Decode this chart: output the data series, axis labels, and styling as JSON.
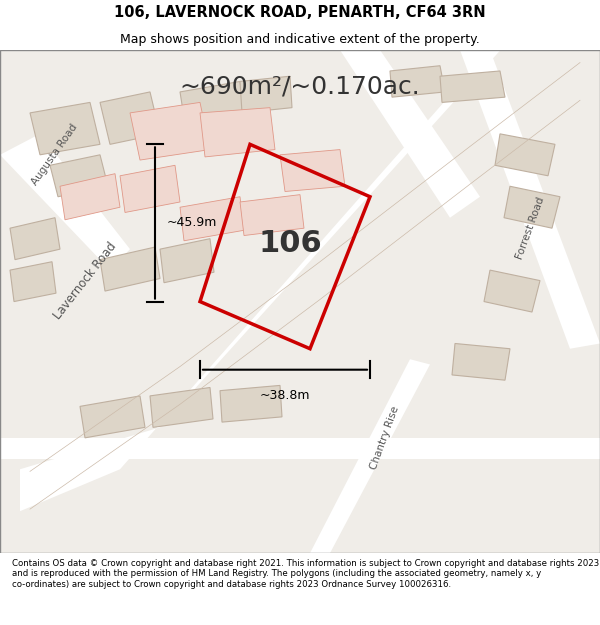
{
  "title": "106, LAVERNOCK ROAD, PENARTH, CF64 3RN",
  "subtitle": "Map shows position and indicative extent of the property.",
  "area_text": "~690m²/~0.170ac.",
  "footer": "Contains OS data © Crown copyright and database right 2021. This information is subject to Crown copyright and database rights 2023 and is reproduced with the permission of HM Land Registry. The polygons (including the associated geometry, namely x, y co-ordinates) are subject to Crown copyright and database rights 2023 Ordnance Survey 100026316.",
  "map_bg": "#f0ede8",
  "road_color": "#ffffff",
  "building_fill": "#e8e0d5",
  "building_stroke": "#c8b8a8",
  "highlight_color": "#e8c8c0",
  "property_outline": "#cc0000",
  "measurement_color": "#000000",
  "dim_width": "~38.8m",
  "dim_height": "~45.9m",
  "label_106": "106",
  "road_label_lavernock": "Lavernock Road",
  "road_label_augusta": "Augusta Road",
  "road_label_chantry": "Chantry Rise",
  "road_label_forrest": "Forrest Road"
}
